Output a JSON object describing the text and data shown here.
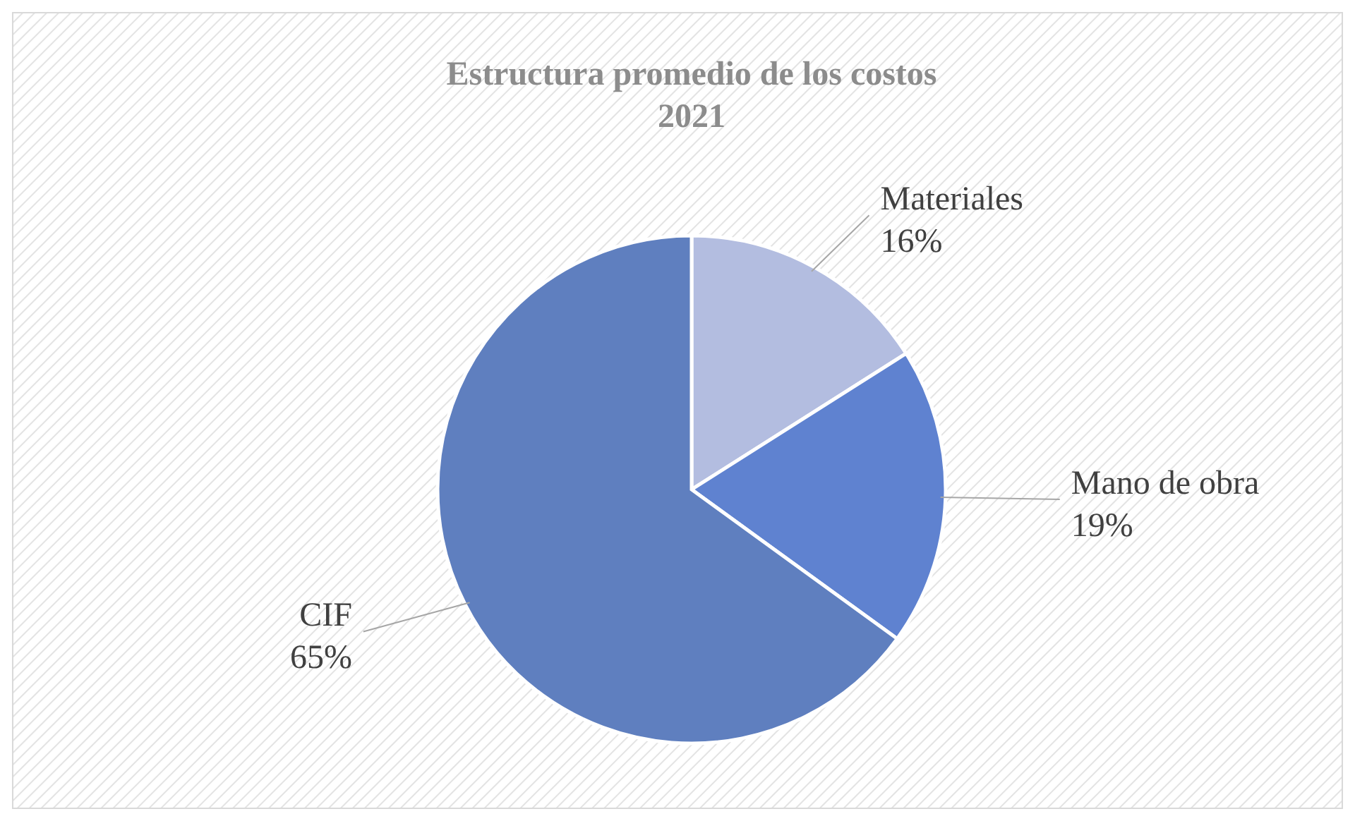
{
  "chart_data": {
    "type": "pie",
    "title": "Estructura promedio de los costos 2021",
    "categories": [
      "Materiales",
      "Mano de obra",
      "CIF"
    ],
    "values": [
      16,
      19,
      65
    ],
    "colors": [
      "#b3bde0",
      "#5f82d0",
      "#5f7fbf"
    ],
    "value_labels": [
      "16%",
      "19%",
      "65%"
    ]
  }
}
